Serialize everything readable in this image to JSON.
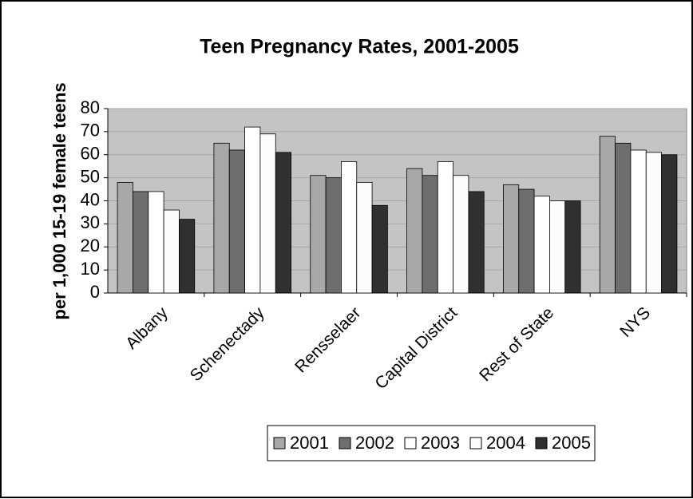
{
  "chart_data": {
    "type": "bar",
    "title": "Teen Pregnancy Rates, 2001-2005",
    "ylabel": "per 1,000 15-19 female teens",
    "categories": [
      "Albany",
      "Schenectady",
      "Rensselaer",
      "Capital District",
      "Rest of State",
      "NYS"
    ],
    "series": [
      {
        "name": "2001",
        "color": "#a8a8a8",
        "values": [
          48,
          65,
          51,
          54,
          47,
          68
        ]
      },
      {
        "name": "2002",
        "color": "#6e6e6e",
        "values": [
          44,
          62,
          50,
          51,
          45,
          65
        ]
      },
      {
        "name": "2003",
        "color": "#ffffff",
        "values": [
          44,
          72,
          57,
          57,
          42,
          62
        ]
      },
      {
        "name": "2004",
        "color": "#fcfcfc",
        "values": [
          36,
          69,
          48,
          51,
          40,
          61
        ]
      },
      {
        "name": "2005",
        "color": "#303030",
        "values": [
          32,
          61,
          38,
          44,
          40,
          60
        ]
      }
    ],
    "ylim": [
      0,
      80
    ],
    "yticks": [
      0,
      10,
      20,
      30,
      40,
      50,
      60,
      70,
      80
    ],
    "grid": true,
    "legend": "bottom"
  }
}
